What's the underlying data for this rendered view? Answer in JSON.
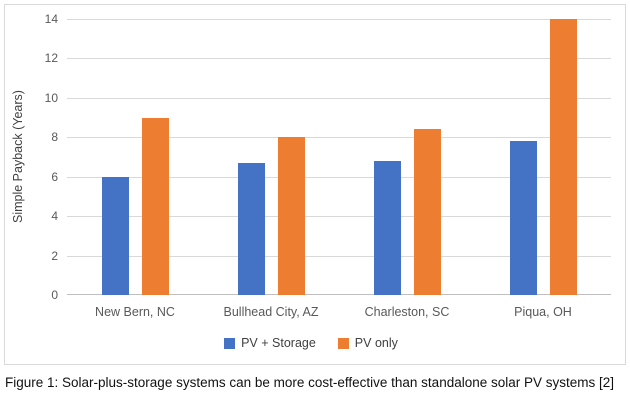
{
  "figure": {
    "caption": "Figure 1: Solar-plus-storage systems can be more cost-effective than standalone solar PV systems [2]"
  },
  "chart_data": {
    "type": "bar",
    "title": "",
    "categories": [
      "New Bern, NC",
      "Bullhead City, AZ",
      "Charleston, SC",
      "Piqua, OH"
    ],
    "series": [
      {
        "name": "PV + Storage",
        "color": "#4472C4",
        "values": [
          6.0,
          6.7,
          6.8,
          7.8
        ]
      },
      {
        "name": "PV only",
        "color": "#ED7D31",
        "values": [
          9.0,
          8.0,
          8.4,
          14.0
        ]
      }
    ],
    "xlabel": "",
    "ylabel": "Simple Payback (Years)",
    "ylim": [
      0,
      14
    ],
    "ytick_step": 2,
    "grid": true,
    "legend_position": "bottom",
    "gridline_color": "#d9d9d9",
    "axis_line_color": "#bfbfbf"
  }
}
